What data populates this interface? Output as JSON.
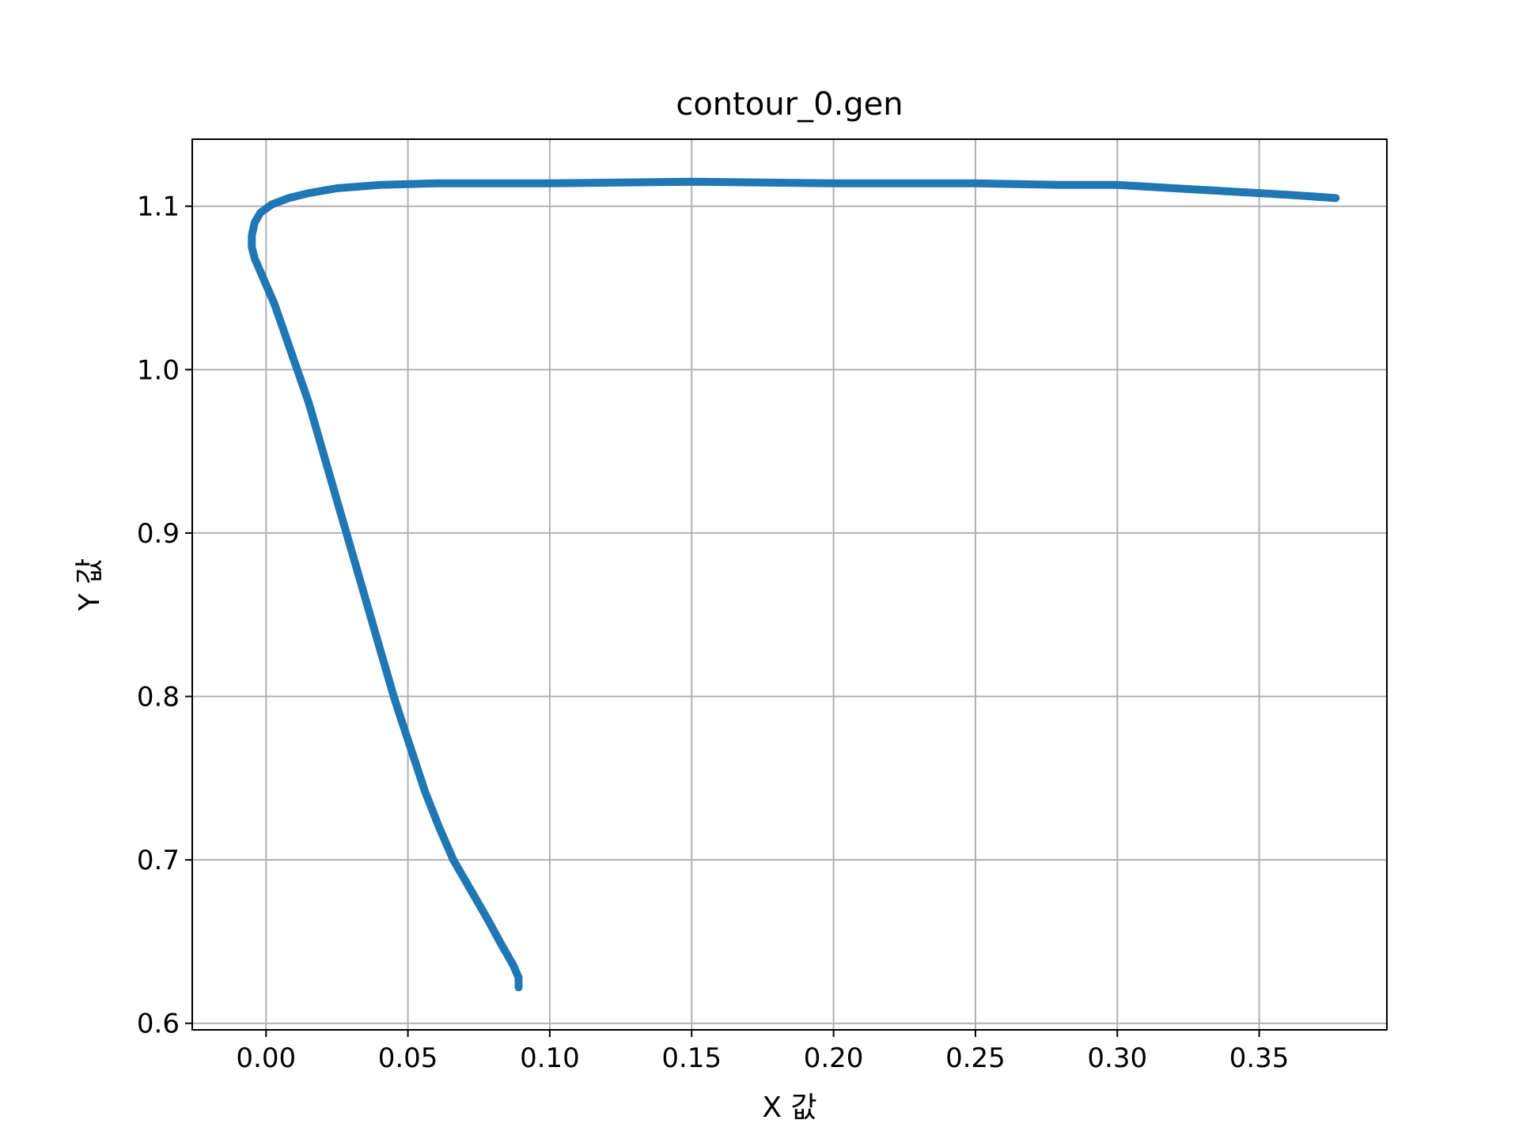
{
  "chart_data": {
    "type": "line",
    "title": "contour_0.gen",
    "xlabel": "X 값",
    "ylabel": "Y 값",
    "xlim": [
      -0.026,
      0.395
    ],
    "ylim": [
      0.596,
      1.141
    ],
    "x_ticks": [
      0.0,
      0.05,
      0.1,
      0.15,
      0.2,
      0.25,
      0.3,
      0.35
    ],
    "y_ticks": [
      0.6,
      0.7,
      0.8,
      0.9,
      1.0,
      1.1
    ],
    "x_tick_labels": [
      "0.00",
      "0.05",
      "0.10",
      "0.15",
      "0.20",
      "0.25",
      "0.30",
      "0.35"
    ],
    "y_tick_labels": [
      "0.6",
      "0.7",
      "0.8",
      "0.9",
      "1.0",
      "1.1"
    ],
    "grid": true,
    "series": [
      {
        "color": "#1f77b4",
        "x": [
          0.089,
          0.089,
          0.087,
          0.083,
          0.078,
          0.072,
          0.066,
          0.061,
          0.056,
          0.052,
          0.048,
          0.045,
          0.04,
          0.035,
          0.03,
          0.025,
          0.02,
          0.015,
          0.01,
          0.006,
          0.003,
          0.0,
          -0.002,
          -0.004,
          -0.005,
          -0.005,
          -0.004,
          -0.002,
          0.002,
          0.008,
          0.015,
          0.025,
          0.04,
          0.06,
          0.1,
          0.15,
          0.2,
          0.25,
          0.28,
          0.3,
          0.32,
          0.34,
          0.36,
          0.377
        ],
        "y": [
          0.622,
          0.628,
          0.636,
          0.648,
          0.664,
          0.682,
          0.7,
          0.72,
          0.742,
          0.763,
          0.784,
          0.8,
          0.83,
          0.86,
          0.89,
          0.92,
          0.95,
          0.98,
          1.005,
          1.025,
          1.04,
          1.052,
          1.06,
          1.068,
          1.075,
          1.082,
          1.09,
          1.096,
          1.101,
          1.105,
          1.108,
          1.111,
          1.113,
          1.114,
          1.114,
          1.115,
          1.114,
          1.114,
          1.113,
          1.113,
          1.111,
          1.109,
          1.107,
          1.105
        ]
      }
    ]
  }
}
